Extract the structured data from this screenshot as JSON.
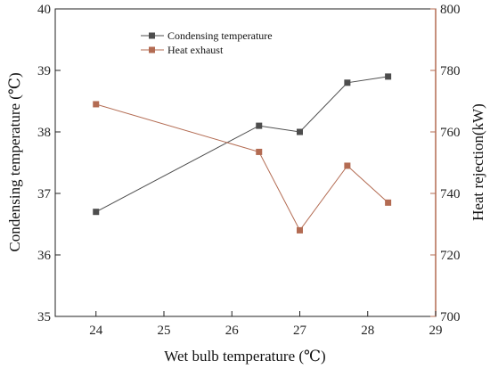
{
  "chart_data": {
    "type": "line",
    "x": [
      24,
      26.4,
      27,
      27.7,
      28.3
    ],
    "xlabel": "Wet bulb temperature (℃)",
    "xlim": [
      23.4,
      29
    ],
    "xticks": [
      "24",
      "25",
      "26",
      "27",
      "28",
      "29"
    ],
    "ylabel_left": "Condensing temperature (℃)",
    "ylim_left": [
      35,
      40
    ],
    "yticks_left": [
      "35",
      "36",
      "37",
      "38",
      "39",
      "40"
    ],
    "ylabel_right": "Heat rejection(kW)",
    "ylim_right": [
      700,
      800
    ],
    "yticks_right": [
      "700",
      "720",
      "740",
      "760",
      "780",
      "800"
    ],
    "legend_position": "top-left",
    "grid": false,
    "series": [
      {
        "name": "Condensing temperature",
        "axis": "left",
        "marker": "square",
        "color": "#4d4d4d",
        "values": [
          36.7,
          38.1,
          38.0,
          38.8,
          38.9
        ]
      },
      {
        "name": "Heat exhaust",
        "axis": "right",
        "marker": "square",
        "color": "#b36b52",
        "values": [
          769,
          753.5,
          728,
          749,
          737
        ]
      }
    ],
    "colors": {
      "left_axis": "#222222",
      "right_axis": "#b36b52"
    }
  }
}
